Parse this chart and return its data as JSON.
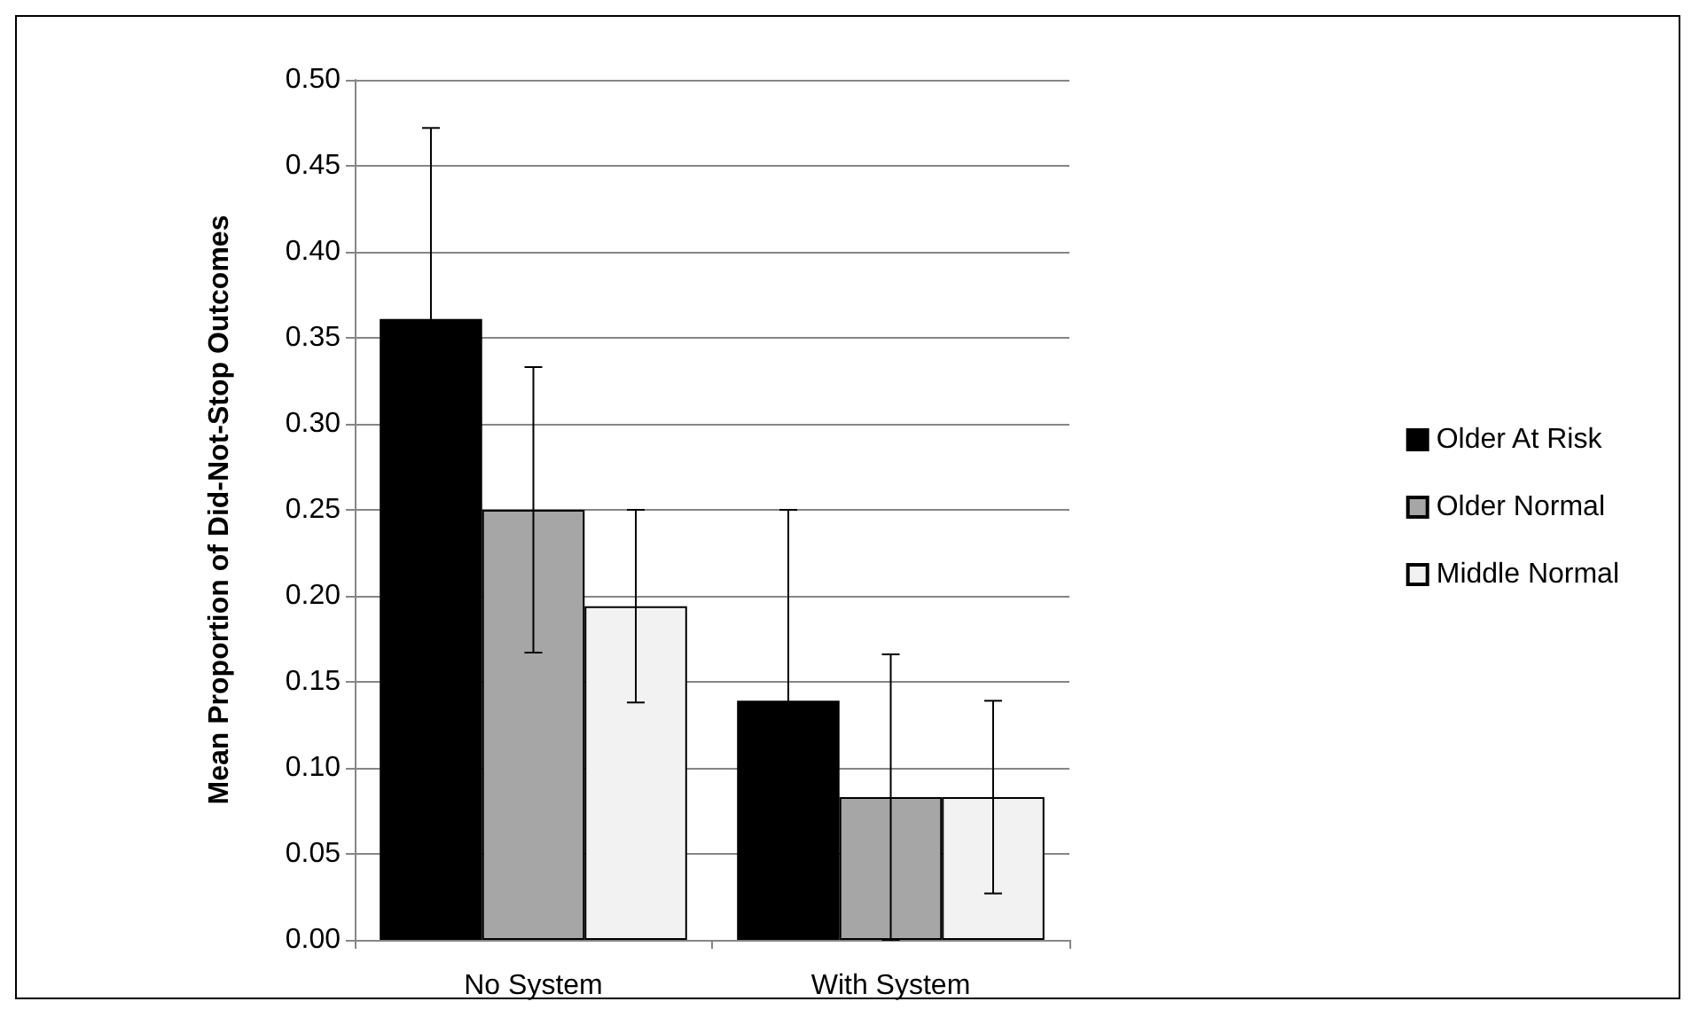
{
  "chart_data": {
    "type": "bar",
    "ylabel": "Mean Proportion of Did-Not-Stop Outcomes",
    "categories": [
      "No System",
      "With System"
    ],
    "series": [
      {
        "name": "Older At Risk",
        "color": "#000000",
        "values": [
          0.361,
          0.139
        ],
        "errors": [
          0.111,
          0.111
        ]
      },
      {
        "name": "Older Normal",
        "color": "#a6a6a6",
        "values": [
          0.25,
          0.083
        ],
        "errors": [
          0.083,
          0.083
        ]
      },
      {
        "name": "Middle Normal",
        "color": "#f2f2f2",
        "values": [
          0.194,
          0.083
        ],
        "errors": [
          0.056,
          0.056
        ]
      }
    ],
    "ylim": [
      0,
      0.5
    ],
    "yticks": [
      {
        "value": 0,
        "label": "0.00"
      },
      {
        "value": 0.05,
        "label": "0.05"
      },
      {
        "value": 0.1,
        "label": "0.10"
      },
      {
        "value": 0.15,
        "label": "0.15"
      },
      {
        "value": 0.2,
        "label": "0.20"
      },
      {
        "value": 0.25,
        "label": "0.25"
      },
      {
        "value": 0.3,
        "label": "0.30"
      },
      {
        "value": 0.35,
        "label": "0.35"
      },
      {
        "value": 0.4,
        "label": "0.40"
      },
      {
        "value": 0.45,
        "label": "0.45"
      },
      {
        "value": 0.5,
        "label": "0.50"
      }
    ],
    "grid": "y",
    "legend": "right"
  }
}
